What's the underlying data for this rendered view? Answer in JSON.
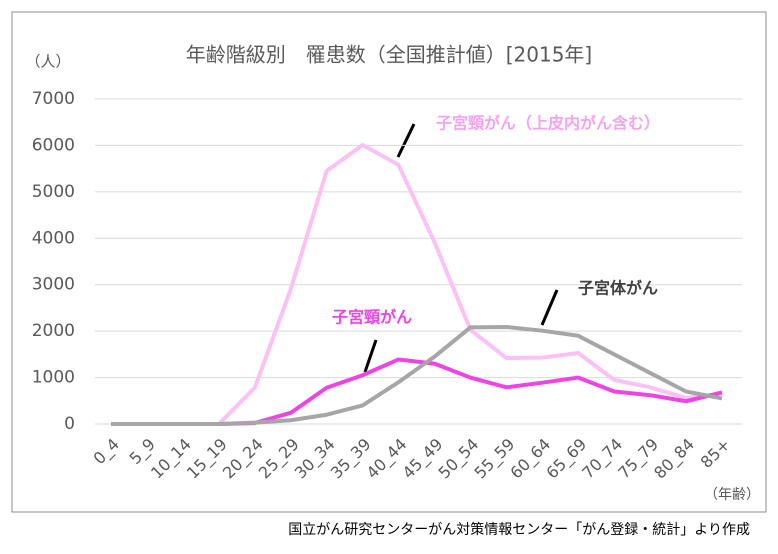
{
  "chart_data": {
    "type": "line",
    "title": "年齢階級別　罹患数（全国推計値）[2015年]",
    "y_label": "（人）",
    "x_label": "（年齢）",
    "source": "国立がん研究センターがん対策情報センター「がん登録・統計」より作成",
    "categories": [
      "0_4",
      "5_9",
      "10_14",
      "15_19",
      "20_24",
      "25_29",
      "30_34",
      "35_39",
      "40_44",
      "45_49",
      "50_54",
      "55_59",
      "60_64",
      "65_69",
      "70_74",
      "75_79",
      "80_84",
      "85+"
    ],
    "series": [
      {
        "name": "子宮頸がん（上皮内がん含む）",
        "color": "#fbc0f5",
        "label_color": "#f6a2ee",
        "values": [
          0,
          0,
          0,
          0,
          780,
          2900,
          5450,
          6010,
          5580,
          3920,
          2030,
          1420,
          1430,
          1530,
          950,
          790,
          560,
          650
        ]
      },
      {
        "name": "子宮頸がん",
        "color": "#ee44e4",
        "label_color": "#ee44e4",
        "values": [
          0,
          0,
          0,
          0,
          20,
          240,
          780,
          1050,
          1390,
          1300,
          1000,
          790,
          890,
          1000,
          700,
          620,
          490,
          680
        ]
      },
      {
        "name": "子宮体がん",
        "color": "#a6a6a6",
        "label_color": "#404040",
        "values": [
          0,
          0,
          0,
          0,
          30,
          80,
          200,
          400,
          900,
          1450,
          2080,
          2090,
          2010,
          1900,
          1500,
          1100,
          700,
          550
        ]
      }
    ],
    "ylim": [
      0,
      7000
    ],
    "yticks": [
      0,
      1000,
      2000,
      3000,
      4000,
      5000,
      6000,
      7000
    ],
    "grid": true
  }
}
